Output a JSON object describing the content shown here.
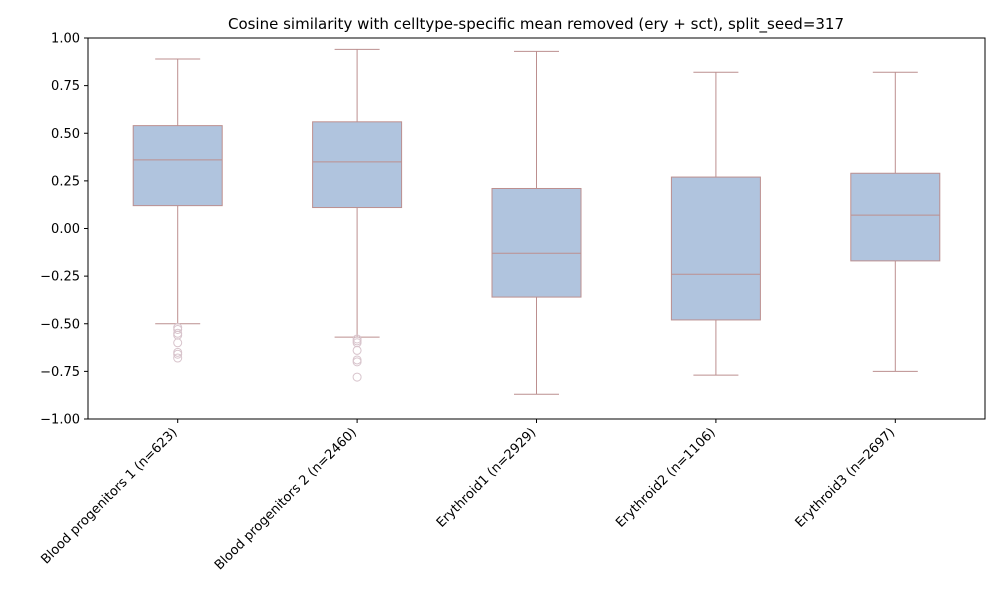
{
  "chart_data": {
    "type": "box",
    "title": "Cosine similarity with celltype-specific mean removed (ery + sct), split_seed=317",
    "xlabel": "",
    "ylabel": "",
    "ylim": [
      -1.0,
      1.0
    ],
    "yticks": [
      "1.00",
      "0.75",
      "0.50",
      "0.25",
      "0.00",
      "−0.25",
      "−0.50",
      "−0.75",
      "−1.00"
    ],
    "ytick_values": [
      1.0,
      0.75,
      0.5,
      0.25,
      0.0,
      -0.25,
      -0.5,
      -0.75,
      -1.0
    ],
    "grid": false,
    "colors": {
      "box_fill": "#b0c4de",
      "box_edge": "#bc8f8f",
      "flier": "#d8c4cc"
    },
    "categories": [
      "Blood progenitors 1 (n=623)",
      "Blood progenitors 2 (n=2460)",
      "Erythroid1 (n=2929)",
      "Erythroid2 (n=1106)",
      "Erythroid3 (n=2697)"
    ],
    "boxes": [
      {
        "whisker_low": -0.5,
        "q1": 0.12,
        "median": 0.36,
        "q3": 0.54,
        "whisker_high": 0.89,
        "fliers": [
          -0.52,
          -0.53,
          -0.55,
          -0.56,
          -0.6,
          -0.65,
          -0.66,
          -0.68
        ]
      },
      {
        "whisker_low": -0.57,
        "q1": 0.11,
        "median": 0.35,
        "q3": 0.56,
        "whisker_high": 0.94,
        "fliers": [
          -0.58,
          -0.59,
          -0.6,
          -0.64,
          -0.69,
          -0.7,
          -0.78
        ]
      },
      {
        "whisker_low": -0.87,
        "q1": -0.36,
        "median": -0.13,
        "q3": 0.21,
        "whisker_high": 0.93,
        "fliers": []
      },
      {
        "whisker_low": -0.77,
        "q1": -0.48,
        "median": -0.24,
        "q3": 0.27,
        "whisker_high": 0.82,
        "fliers": []
      },
      {
        "whisker_low": -0.75,
        "q1": -0.17,
        "median": 0.07,
        "q3": 0.29,
        "whisker_high": 0.82,
        "fliers": []
      }
    ]
  }
}
